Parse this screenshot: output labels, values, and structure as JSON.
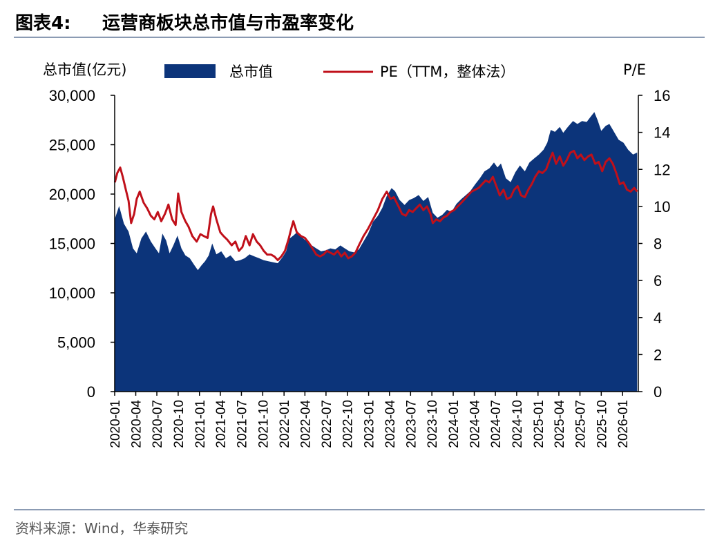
{
  "header": {
    "figure_label": "图表4:",
    "title": "运营商板块总市值与市盈率变化"
  },
  "source": "资料来源：Wind，华泰研究",
  "colors": {
    "area": "#0c347a",
    "line": "#c0101a",
    "rule": "#8b9bb3"
  },
  "chart_data": {
    "type": "area+line",
    "title": "运营商板块总市值与市盈率变化",
    "y_left_label": "总市值(亿元)",
    "y_right_label": "P/E",
    "y_left_range": [
      0,
      30000
    ],
    "y_right_range": [
      0,
      16
    ],
    "y_left_ticks": [
      "30,000",
      "25,000",
      "20,000",
      "15,000",
      "10,000",
      "5,000",
      "0"
    ],
    "y_right_ticks": [
      "16",
      "14",
      "12",
      "10",
      "8",
      "6",
      "4",
      "2",
      "0"
    ],
    "x_ticks": [
      "2020-01",
      "2020-04",
      "2020-07",
      "2020-10",
      "2021-01",
      "2021-04",
      "2021-07",
      "2021-10",
      "2022-01",
      "2022-04",
      "2022-07",
      "2022-10",
      "2023-01",
      "2023-04",
      "2023-07",
      "2023-10",
      "2024-01",
      "2024-04",
      "2024-07",
      "2024-10",
      "2025-01",
      "2025-04",
      "2025-07",
      "2025-10",
      "2026-01"
    ],
    "legend": [
      "总市值",
      "PE（TTM，整体法）"
    ],
    "legend_position": "top",
    "series": [
      {
        "name": "总市值",
        "type": "area",
        "axis": "left",
        "points": [
          [
            "2020-01-02",
            17500
          ],
          [
            "2020-01-20",
            18800
          ],
          [
            "2020-02-10",
            17000
          ],
          [
            "2020-03-01",
            16200
          ],
          [
            "2020-03-20",
            14500
          ],
          [
            "2020-04-05",
            14000
          ],
          [
            "2020-04-25",
            15500
          ],
          [
            "2020-05-15",
            16200
          ],
          [
            "2020-06-05",
            15200
          ],
          [
            "2020-06-25",
            14500
          ],
          [
            "2020-07-10",
            14000
          ],
          [
            "2020-07-25",
            16000
          ],
          [
            "2020-08-10",
            15300
          ],
          [
            "2020-08-25",
            14000
          ],
          [
            "2020-09-10",
            14800
          ],
          [
            "2020-09-28",
            15800
          ],
          [
            "2020-10-15",
            14500
          ],
          [
            "2020-11-01",
            13800
          ],
          [
            "2020-11-20",
            13500
          ],
          [
            "2020-12-10",
            12800
          ],
          [
            "2020-12-25",
            12300
          ],
          [
            "2021-01-10",
            12800
          ],
          [
            "2021-01-25",
            13200
          ],
          [
            "2021-02-10",
            13800
          ],
          [
            "2021-02-25",
            15000
          ],
          [
            "2021-03-15",
            13900
          ],
          [
            "2021-04-05",
            14200
          ],
          [
            "2021-04-25",
            13500
          ],
          [
            "2021-05-15",
            13800
          ],
          [
            "2021-06-05",
            13200
          ],
          [
            "2021-06-25",
            13300
          ],
          [
            "2021-07-15",
            13500
          ],
          [
            "2021-08-05",
            13900
          ],
          [
            "2021-08-25",
            13700
          ],
          [
            "2021-09-15",
            13500
          ],
          [
            "2021-10-05",
            13300
          ],
          [
            "2021-10-25",
            13200
          ],
          [
            "2021-11-15",
            13100
          ],
          [
            "2021-12-05",
            13000
          ],
          [
            "2021-12-25",
            13600
          ],
          [
            "2022-01-10",
            14200
          ],
          [
            "2022-01-25",
            15500
          ],
          [
            "2022-02-10",
            15800
          ],
          [
            "2022-03-01",
            16200
          ],
          [
            "2022-03-20",
            15600
          ],
          [
            "2022-04-10",
            15200
          ],
          [
            "2022-05-01",
            14800
          ],
          [
            "2022-05-20",
            14500
          ],
          [
            "2022-06-10",
            14200
          ],
          [
            "2022-06-30",
            14300
          ],
          [
            "2022-07-20",
            14500
          ],
          [
            "2022-08-10",
            14400
          ],
          [
            "2022-09-01",
            14800
          ],
          [
            "2022-09-20",
            14500
          ],
          [
            "2022-10-10",
            14200
          ],
          [
            "2022-10-30",
            14100
          ],
          [
            "2022-11-20",
            14400
          ],
          [
            "2022-12-10",
            15200
          ],
          [
            "2022-12-30",
            16000
          ],
          [
            "2023-01-20",
            17200
          ],
          [
            "2023-02-10",
            17800
          ],
          [
            "2023-03-01",
            18600
          ],
          [
            "2023-03-20",
            19800
          ],
          [
            "2023-04-10",
            20600
          ],
          [
            "2023-04-25",
            20300
          ],
          [
            "2023-05-15",
            19400
          ],
          [
            "2023-06-05",
            18900
          ],
          [
            "2023-06-25",
            19400
          ],
          [
            "2023-07-15",
            19600
          ],
          [
            "2023-08-05",
            19900
          ],
          [
            "2023-08-25",
            19300
          ],
          [
            "2023-09-15",
            19700
          ],
          [
            "2023-10-05",
            18100
          ],
          [
            "2023-10-25",
            17600
          ],
          [
            "2023-11-15",
            17900
          ],
          [
            "2023-12-05",
            18400
          ],
          [
            "2023-12-25",
            18200
          ],
          [
            "2024-01-15",
            19000
          ],
          [
            "2024-02-05",
            19500
          ],
          [
            "2024-02-25",
            19900
          ],
          [
            "2024-03-15",
            20300
          ],
          [
            "2024-04-05",
            21000
          ],
          [
            "2024-04-25",
            21600
          ],
          [
            "2024-05-15",
            22300
          ],
          [
            "2024-06-05",
            22600
          ],
          [
            "2024-06-25",
            23200
          ],
          [
            "2024-07-10",
            22700
          ],
          [
            "2024-07-25",
            23100
          ],
          [
            "2024-08-15",
            21600
          ],
          [
            "2024-09-05",
            21200
          ],
          [
            "2024-09-25",
            22200
          ],
          [
            "2024-10-15",
            22900
          ],
          [
            "2024-11-05",
            22300
          ],
          [
            "2024-11-25",
            23200
          ],
          [
            "2024-12-15",
            23600
          ],
          [
            "2025-01-05",
            24000
          ],
          [
            "2025-01-25",
            24500
          ],
          [
            "2025-02-10",
            25200
          ],
          [
            "2025-02-25",
            26500
          ],
          [
            "2025-03-15",
            26300
          ],
          [
            "2025-04-05",
            26800
          ],
          [
            "2025-04-20",
            26200
          ],
          [
            "2025-05-10",
            26800
          ],
          [
            "2025-06-01",
            27400
          ],
          [
            "2025-06-20",
            27100
          ],
          [
            "2025-07-10",
            27400
          ],
          [
            "2025-07-30",
            27300
          ],
          [
            "2025-08-15",
            27800
          ],
          [
            "2025-09-01",
            28300
          ],
          [
            "2025-09-15",
            27500
          ],
          [
            "2025-10-01",
            26400
          ],
          [
            "2025-10-20",
            26900
          ],
          [
            "2025-11-05",
            27100
          ],
          [
            "2025-11-25",
            26300
          ],
          [
            "2025-12-15",
            25500
          ],
          [
            "2026-01-05",
            25200
          ],
          [
            "2026-01-25",
            24500
          ],
          [
            "2026-02-15",
            24000
          ],
          [
            "2026-03-05",
            24200
          ]
        ]
      },
      {
        "name": "PE（TTM，整体法）",
        "type": "line",
        "axis": "right",
        "points": [
          [
            "2020-01-02",
            11.3
          ],
          [
            "2020-01-12",
            11.8
          ],
          [
            "2020-01-25",
            12.1
          ],
          [
            "2020-02-05",
            11.6
          ],
          [
            "2020-02-20",
            10.8
          ],
          [
            "2020-03-01",
            10.3
          ],
          [
            "2020-03-12",
            9.1
          ],
          [
            "2020-03-25",
            9.6
          ],
          [
            "2020-04-05",
            10.4
          ],
          [
            "2020-04-18",
            10.8
          ],
          [
            "2020-05-05",
            10.2
          ],
          [
            "2020-05-20",
            9.9
          ],
          [
            "2020-06-05",
            9.5
          ],
          [
            "2020-06-20",
            9.3
          ],
          [
            "2020-07-05",
            9.7
          ],
          [
            "2020-07-20",
            9.2
          ],
          [
            "2020-08-05",
            9.6
          ],
          [
            "2020-08-20",
            10.1
          ],
          [
            "2020-09-05",
            9.3
          ],
          [
            "2020-09-20",
            9.0
          ],
          [
            "2020-10-01",
            10.7
          ],
          [
            "2020-10-15",
            9.7
          ],
          [
            "2020-11-01",
            9.2
          ],
          [
            "2020-11-15",
            8.9
          ],
          [
            "2020-12-01",
            8.4
          ],
          [
            "2020-12-20",
            8.1
          ],
          [
            "2021-01-05",
            8.5
          ],
          [
            "2021-01-20",
            8.4
          ],
          [
            "2021-02-05",
            8.3
          ],
          [
            "2021-02-20",
            9.6
          ],
          [
            "2021-03-01",
            10.0
          ],
          [
            "2021-03-15",
            9.3
          ],
          [
            "2021-04-01",
            8.6
          ],
          [
            "2021-04-15",
            8.4
          ],
          [
            "2021-05-01",
            8.2
          ],
          [
            "2021-05-20",
            7.9
          ],
          [
            "2021-06-05",
            8.1
          ],
          [
            "2021-06-20",
            7.6
          ],
          [
            "2021-07-05",
            7.8
          ],
          [
            "2021-07-20",
            8.4
          ],
          [
            "2021-08-05",
            7.9
          ],
          [
            "2021-08-20",
            8.5
          ],
          [
            "2021-09-05",
            8.1
          ],
          [
            "2021-09-20",
            7.9
          ],
          [
            "2021-10-05",
            7.6
          ],
          [
            "2021-10-20",
            7.4
          ],
          [
            "2021-11-05",
            7.4
          ],
          [
            "2021-11-20",
            7.3
          ],
          [
            "2021-12-05",
            7.1
          ],
          [
            "2021-12-20",
            7.3
          ],
          [
            "2022-01-05",
            7.6
          ],
          [
            "2022-01-20",
            8.2
          ],
          [
            "2022-02-01",
            8.8
          ],
          [
            "2022-02-10",
            9.2
          ],
          [
            "2022-02-25",
            8.6
          ],
          [
            "2022-03-15",
            8.4
          ],
          [
            "2022-04-01",
            8.3
          ],
          [
            "2022-04-20",
            8.0
          ],
          [
            "2022-05-05",
            7.7
          ],
          [
            "2022-05-20",
            7.4
          ],
          [
            "2022-06-05",
            7.3
          ],
          [
            "2022-06-20",
            7.4
          ],
          [
            "2022-07-05",
            7.6
          ],
          [
            "2022-07-20",
            7.5
          ],
          [
            "2022-08-05",
            7.4
          ],
          [
            "2022-08-20",
            7.6
          ],
          [
            "2022-09-05",
            7.3
          ],
          [
            "2022-09-20",
            7.5
          ],
          [
            "2022-10-05",
            7.2
          ],
          [
            "2022-10-20",
            7.3
          ],
          [
            "2022-11-05",
            7.5
          ],
          [
            "2022-11-20",
            7.9
          ],
          [
            "2022-12-10",
            8.4
          ],
          [
            "2022-12-30",
            8.8
          ],
          [
            "2023-01-20",
            9.3
          ],
          [
            "2023-02-10",
            9.8
          ],
          [
            "2023-03-01",
            10.4
          ],
          [
            "2023-03-20",
            10.8
          ],
          [
            "2023-04-05",
            10.4
          ],
          [
            "2023-04-20",
            10.5
          ],
          [
            "2023-05-10",
            10.0
          ],
          [
            "2023-05-25",
            9.6
          ],
          [
            "2023-06-10",
            9.5
          ],
          [
            "2023-06-25",
            9.8
          ],
          [
            "2023-07-10",
            9.7
          ],
          [
            "2023-07-25",
            9.9
          ],
          [
            "2023-08-10",
            10.1
          ],
          [
            "2023-08-25",
            9.8
          ],
          [
            "2023-09-10",
            10.0
          ],
          [
            "2023-09-25",
            9.6
          ],
          [
            "2023-10-05",
            9.1
          ],
          [
            "2023-10-20",
            9.3
          ],
          [
            "2023-11-05",
            9.2
          ],
          [
            "2023-11-20",
            9.4
          ],
          [
            "2023-12-05",
            9.5
          ],
          [
            "2023-12-20",
            9.7
          ],
          [
            "2024-01-05",
            9.8
          ],
          [
            "2024-01-20",
            10.0
          ],
          [
            "2024-02-05",
            10.2
          ],
          [
            "2024-02-20",
            10.4
          ],
          [
            "2024-03-05",
            10.6
          ],
          [
            "2024-03-20",
            10.8
          ],
          [
            "2024-04-05",
            10.9
          ],
          [
            "2024-04-20",
            11.0
          ],
          [
            "2024-05-05",
            11.2
          ],
          [
            "2024-05-20",
            11.4
          ],
          [
            "2024-06-05",
            11.3
          ],
          [
            "2024-06-20",
            11.6
          ],
          [
            "2024-07-05",
            11.1
          ],
          [
            "2024-07-20",
            10.6
          ],
          [
            "2024-08-05",
            10.9
          ],
          [
            "2024-08-20",
            10.4
          ],
          [
            "2024-09-05",
            10.5
          ],
          [
            "2024-09-20",
            10.9
          ],
          [
            "2024-10-05",
            11.1
          ],
          [
            "2024-10-20",
            10.6
          ],
          [
            "2024-11-05",
            10.5
          ],
          [
            "2024-11-20",
            10.9
          ],
          [
            "2024-12-05",
            11.2
          ],
          [
            "2024-12-20",
            11.6
          ],
          [
            "2025-01-05",
            11.9
          ],
          [
            "2025-01-20",
            11.8
          ],
          [
            "2025-02-05",
            12.0
          ],
          [
            "2025-02-20",
            12.5
          ],
          [
            "2025-03-05",
            12.9
          ],
          [
            "2025-03-20",
            12.3
          ],
          [
            "2025-04-05",
            12.7
          ],
          [
            "2025-04-20",
            12.2
          ],
          [
            "2025-05-05",
            12.5
          ],
          [
            "2025-05-20",
            12.9
          ],
          [
            "2025-06-05",
            13.0
          ],
          [
            "2025-06-20",
            12.6
          ],
          [
            "2025-07-05",
            12.8
          ],
          [
            "2025-07-20",
            12.5
          ],
          [
            "2025-08-05",
            12.7
          ],
          [
            "2025-08-20",
            12.8
          ],
          [
            "2025-09-05",
            12.3
          ],
          [
            "2025-09-20",
            12.4
          ],
          [
            "2025-10-05",
            11.9
          ],
          [
            "2025-10-20",
            12.4
          ],
          [
            "2025-11-05",
            12.6
          ],
          [
            "2025-11-20",
            12.3
          ],
          [
            "2025-12-05",
            11.8
          ],
          [
            "2025-12-20",
            11.2
          ],
          [
            "2026-01-05",
            11.3
          ],
          [
            "2026-01-20",
            10.9
          ],
          [
            "2026-02-05",
            10.8
          ],
          [
            "2026-02-20",
            11.0
          ],
          [
            "2026-03-05",
            10.8
          ]
        ]
      }
    ]
  }
}
